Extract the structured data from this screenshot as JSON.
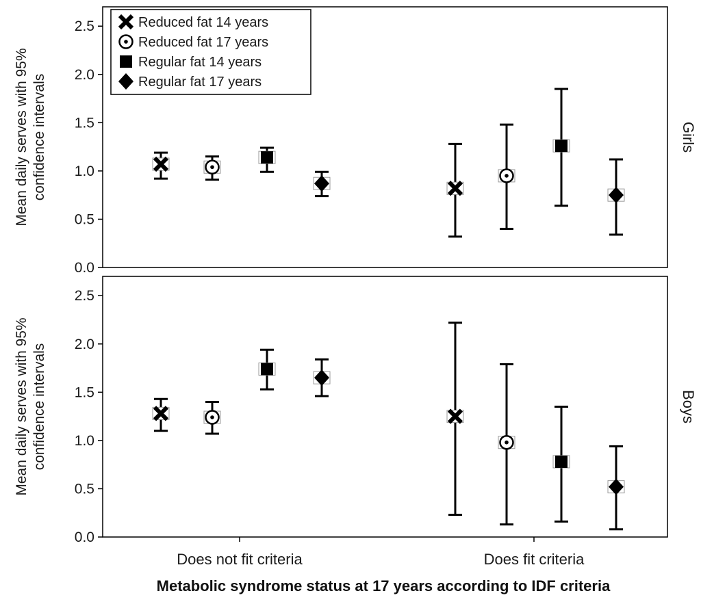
{
  "chart_data": {
    "type": "scatter",
    "style": "error-bars",
    "xlabel": "Metabolic syndrome status at 17 years according to IDF criteria",
    "ylabel_lines": [
      "Mean daily serves with 95%",
      "confidence intervals"
    ],
    "categories": [
      "Does not fit criteria",
      "Does fit criteria"
    ],
    "ylim": [
      0,
      2.7
    ],
    "yticks": [
      "0.0",
      "0.5",
      "1.0",
      "1.5",
      "2.0",
      "2.5"
    ],
    "legend_position": "top-left",
    "series_meta": [
      {
        "name": "Reduced fat 14 years",
        "marker": "x-icon"
      },
      {
        "name": "Reduced fat 17 years",
        "marker": "dotted-circle-icon"
      },
      {
        "name": "Regular fat 14 years",
        "marker": "square-icon"
      },
      {
        "name": "Regular fat 17 years",
        "marker": "diamond-icon"
      }
    ],
    "panels": [
      {
        "label": "Girls",
        "series": [
          {
            "name": "Reduced fat 14 years",
            "values": [
              1.07,
              0.82
            ],
            "lower": [
              0.92,
              0.32
            ],
            "upper": [
              1.19,
              1.28
            ]
          },
          {
            "name": "Reduced fat 17 years",
            "values": [
              1.04,
              0.95
            ],
            "lower": [
              0.91,
              0.4
            ],
            "upper": [
              1.15,
              1.48
            ]
          },
          {
            "name": "Regular fat 14 years",
            "values": [
              1.14,
              1.26
            ],
            "lower": [
              0.99,
              0.64
            ],
            "upper": [
              1.24,
              1.85
            ]
          },
          {
            "name": "Regular fat 17 years",
            "values": [
              0.87,
              0.75
            ],
            "lower": [
              0.74,
              0.34
            ],
            "upper": [
              0.99,
              1.12
            ]
          }
        ]
      },
      {
        "label": "Boys",
        "series": [
          {
            "name": "Reduced fat 14 years",
            "values": [
              1.28,
              1.25
            ],
            "lower": [
              1.1,
              0.23
            ],
            "upper": [
              1.43,
              2.22
            ]
          },
          {
            "name": "Reduced fat 17 years",
            "values": [
              1.24,
              0.98
            ],
            "lower": [
              1.07,
              0.13
            ],
            "upper": [
              1.4,
              1.79
            ]
          },
          {
            "name": "Regular fat 14 years",
            "values": [
              1.74,
              0.78
            ],
            "lower": [
              1.53,
              0.16
            ],
            "upper": [
              1.94,
              1.35
            ]
          },
          {
            "name": "Regular fat 17 years",
            "values": [
              1.65,
              0.52
            ],
            "lower": [
              1.46,
              0.08
            ],
            "upper": [
              1.84,
              0.94
            ]
          }
        ]
      }
    ]
  }
}
